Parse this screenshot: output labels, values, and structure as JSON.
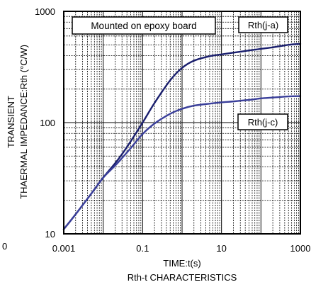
{
  "chart_data": {
    "type": "line",
    "title": "Rth-t CHARACTERISTICS",
    "xlabel": "TIME:t(s)",
    "ylabel_lines": [
      "TRANSIENT",
      "THAERMAL IMPEDANCE:Rth (°C/W)"
    ],
    "x_scale": "log",
    "y_scale": "log",
    "xlim": [
      0.001,
      1000
    ],
    "ylim": [
      10,
      1000
    ],
    "x_ticks": [
      {
        "value": 0.001,
        "label": "0.001"
      },
      {
        "value": 0.1,
        "label": "0.1"
      },
      {
        "value": 10,
        "label": "10"
      },
      {
        "value": 1000,
        "label": "1000"
      }
    ],
    "y_ticks": [
      {
        "value": 10,
        "label": "10"
      },
      {
        "value": 100,
        "label": "100"
      },
      {
        "value": 1000,
        "label": "1000"
      }
    ],
    "grid": true,
    "annotations": {
      "condition": "Mounted on epoxy board",
      "left_stray": "0"
    },
    "series": [
      {
        "name": "Rth(j-a)",
        "color": "#1a1f6e",
        "x": [
          0.001,
          0.002,
          0.005,
          0.01,
          0.02,
          0.03,
          0.05,
          0.1,
          0.2,
          0.5,
          1,
          2,
          5,
          10,
          20,
          50,
          100,
          200,
          500,
          1000
        ],
        "y": [
          11,
          15,
          23,
          32,
          43,
          52,
          68,
          100,
          150,
          240,
          310,
          360,
          395,
          410,
          425,
          445,
          460,
          475,
          500,
          510
        ]
      },
      {
        "name": "Rth(j-c)",
        "color": "#3a3f9a",
        "x": [
          0.001,
          0.002,
          0.005,
          0.01,
          0.02,
          0.03,
          0.05,
          0.1,
          0.2,
          0.5,
          1,
          2,
          5,
          10,
          20,
          50,
          100,
          200,
          500,
          1000
        ],
        "y": [
          11,
          15,
          23,
          32,
          41,
          48,
          59,
          79,
          98,
          120,
          133,
          142,
          148,
          152,
          155,
          160,
          165,
          168,
          172,
          173
        ]
      }
    ]
  }
}
